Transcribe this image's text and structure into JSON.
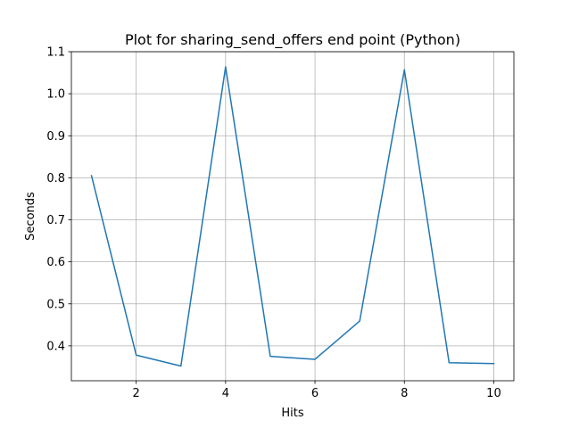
{
  "chart_data": {
    "type": "line",
    "title": "Plot for sharing_send_offers end point (Python)",
    "xlabel": "Hits",
    "ylabel": "Seconds",
    "x": [
      1,
      2,
      3,
      4,
      5,
      6,
      7,
      8,
      9,
      10
    ],
    "series": [
      {
        "values": [
          0.805,
          0.378,
          0.352,
          1.064,
          0.375,
          0.368,
          0.459,
          1.057,
          0.36,
          0.358
        ],
        "color": "#1f77b4"
      }
    ],
    "xlim": [
      0.55,
      10.45
    ],
    "ylim": [
      0.317,
      1.1
    ],
    "xticks": [
      2,
      4,
      6,
      8,
      10
    ],
    "xtick_labels": [
      "2",
      "4",
      "6",
      "8",
      "10"
    ],
    "yticks": [
      0.4,
      0.5,
      0.6,
      0.7,
      0.8,
      0.9,
      1.0,
      1.1
    ],
    "ytick_labels": [
      "0.4",
      "0.5",
      "0.6",
      "0.7",
      "0.8",
      "0.9",
      "1.0",
      "1.1"
    ],
    "grid": true,
    "legend": false
  }
}
